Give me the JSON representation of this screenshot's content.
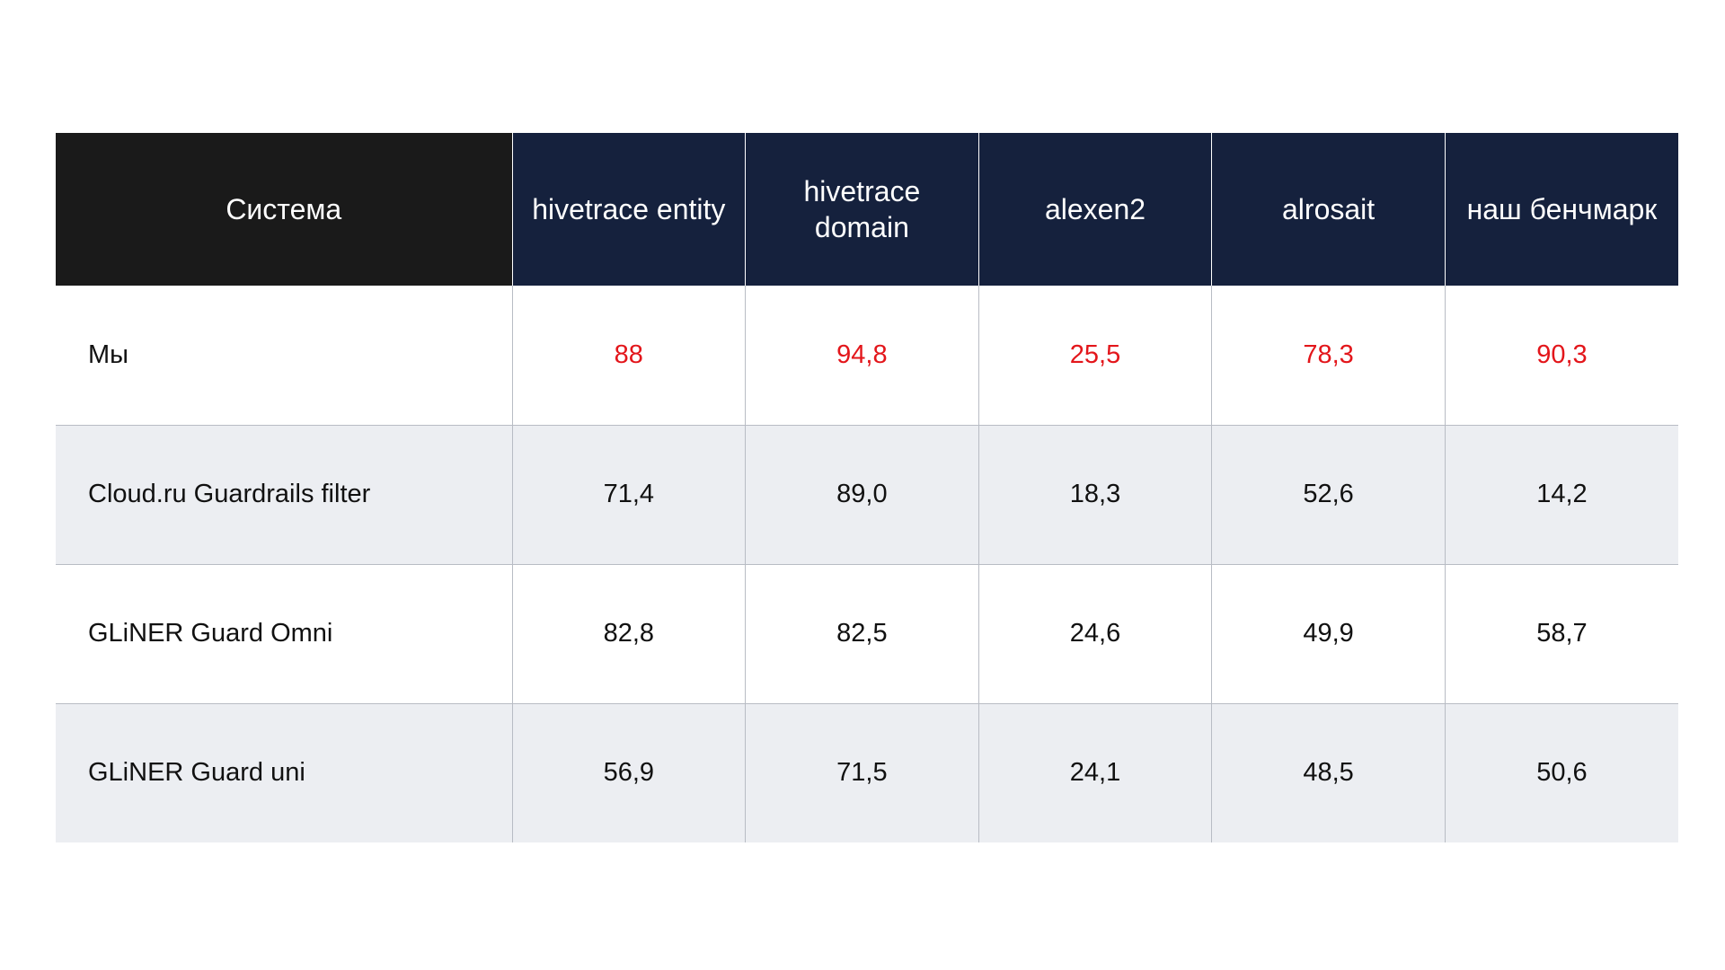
{
  "table": {
    "headers": [
      "Система",
      "hivetrace entity",
      "hivetrace domain",
      "alexen2",
      "alrosait",
      "наш бенчмарк"
    ],
    "rows": [
      {
        "system": "Мы",
        "values": [
          "88",
          "94,8",
          "25,5",
          "78,3",
          "90,3"
        ],
        "highlight": true
      },
      {
        "system": "Cloud.ru Guardrails filter",
        "values": [
          "71,4",
          "89,0",
          "18,3",
          "52,6",
          "14,2"
        ],
        "highlight": false
      },
      {
        "system": "GLiNER Guard Omni",
        "values": [
          "82,8",
          "82,5",
          "24,6",
          "49,9",
          "58,7"
        ],
        "highlight": false
      },
      {
        "system": "GLiNER Guard uni",
        "values": [
          "56,9",
          "71,5",
          "24,1",
          "48,5",
          "50,6"
        ],
        "highlight": false
      }
    ],
    "colors": {
      "system_header_bg": "#1a1a1a",
      "metric_header_bg": "#15213d",
      "alt_row_bg": "#eceef2",
      "highlight_text": "#e3161b"
    }
  }
}
